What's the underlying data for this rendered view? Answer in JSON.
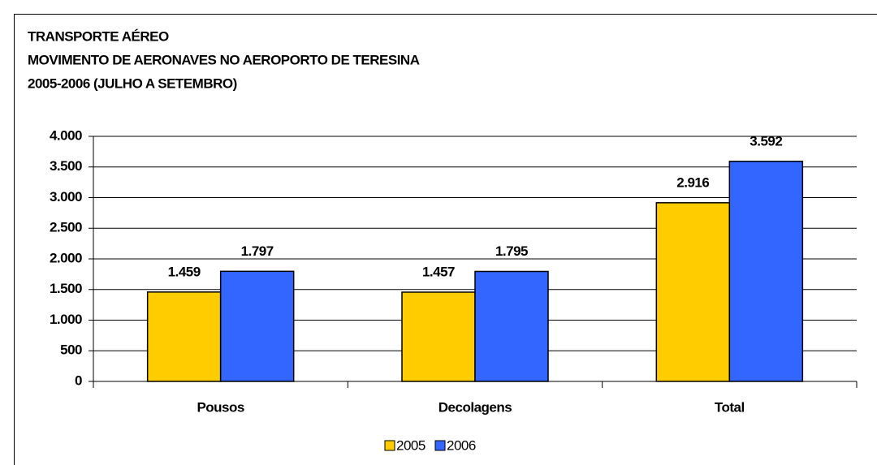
{
  "chart_data": {
    "type": "bar",
    "title_lines": [
      "TRANSPORTE AÉREO",
      "MOVIMENTO DE AERONAVES NO AEROPORTO DE TERESINA",
      "2005-2006 (JULHO A SETEMBRO)"
    ],
    "categories": [
      "Pousos",
      "Decolagens",
      "Total"
    ],
    "series": [
      {
        "name": "2005",
        "color": "#ffcc00",
        "values": [
          1459,
          1457,
          2916
        ],
        "value_labels": [
          "1.459",
          "1.457",
          "2.916"
        ]
      },
      {
        "name": "2006",
        "color": "#3366ff",
        "values": [
          1797,
          1795,
          3592
        ],
        "value_labels": [
          "1.797",
          "1.795",
          "3.592"
        ]
      }
    ],
    "ylim": [
      0,
      4000
    ],
    "yticks": [
      {
        "value": 0,
        "label": "0"
      },
      {
        "value": 500,
        "label": "500"
      },
      {
        "value": 1000,
        "label": "1.000"
      },
      {
        "value": 1500,
        "label": "1.500"
      },
      {
        "value": 2000,
        "label": "2.000"
      },
      {
        "value": 2500,
        "label": "2.500"
      },
      {
        "value": 3000,
        "label": "3.000"
      },
      {
        "value": 3500,
        "label": "3.500"
      },
      {
        "value": 4000,
        "label": "4.000"
      }
    ],
    "grid": true,
    "legend": "bottom"
  }
}
